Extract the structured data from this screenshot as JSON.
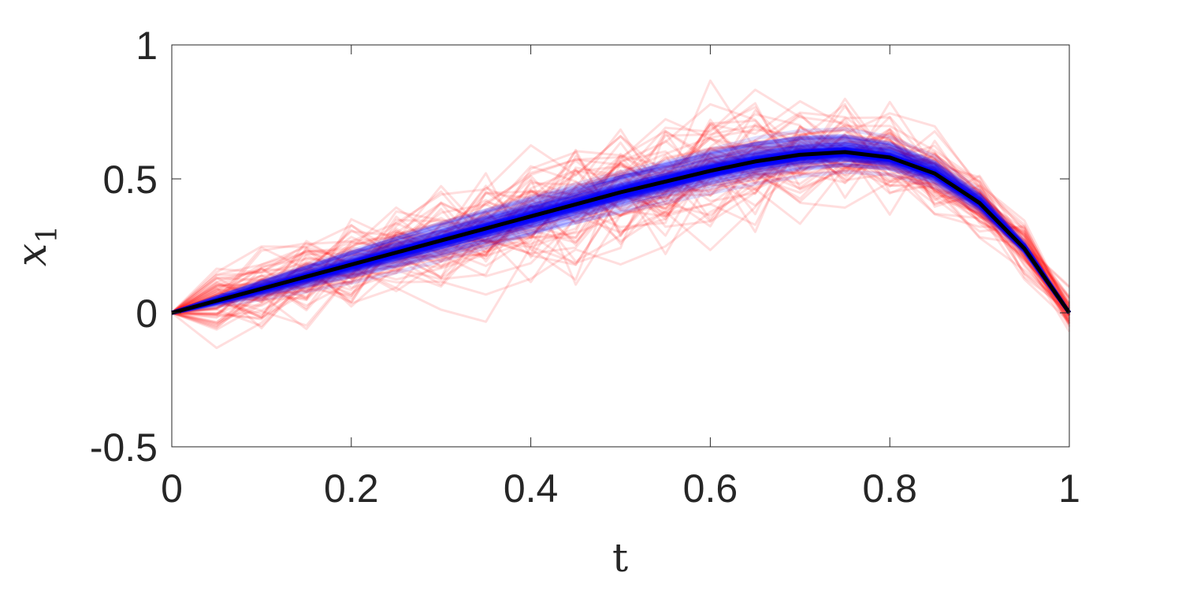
{
  "chart_data": {
    "type": "line",
    "title": "",
    "xlabel": "t",
    "ylabel": "x",
    "ylabel_subscript": "1",
    "xlim": [
      0,
      1
    ],
    "ylim": [
      -0.5,
      1
    ],
    "xticks": [
      0,
      0.2,
      0.4,
      0.6,
      0.8,
      1
    ],
    "xtick_labels": [
      "0",
      "0.2",
      "0.4",
      "0.6",
      "0.8",
      "1"
    ],
    "yticks": [
      -0.5,
      0,
      0.5,
      1
    ],
    "ytick_labels": [
      "-0.5",
      "0",
      "0.5",
      "1"
    ],
    "grid": false,
    "legend": "none",
    "x": [
      0,
      0.05,
      0.1,
      0.15,
      0.2,
      0.25,
      0.3,
      0.35,
      0.4,
      0.45,
      0.5,
      0.55,
      0.6,
      0.65,
      0.7,
      0.75,
      0.8,
      0.85,
      0.9,
      0.95,
      1
    ],
    "mean_series": {
      "color": "#000000",
      "values": [
        0,
        0.045,
        0.09,
        0.135,
        0.18,
        0.225,
        0.27,
        0.315,
        0.36,
        0.405,
        0.45,
        0.49,
        0.53,
        0.565,
        0.59,
        0.6,
        0.58,
        0.52,
        0.41,
        0.24,
        0
      ]
    },
    "blue_ensemble": {
      "color": "#0000ff",
      "count": 60,
      "spread": 0.035,
      "opacity": 0.12
    },
    "red_ensemble": {
      "color": "#ff0000",
      "count": 70,
      "spread": 0.1,
      "opacity": 0.13
    }
  }
}
